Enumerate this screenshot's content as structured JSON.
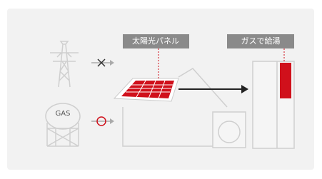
{
  "labels": {
    "solar_panel": "太陽光パネル",
    "gas_hot_water": "ガスで給湯",
    "gas_tank": "GAS"
  }
}
